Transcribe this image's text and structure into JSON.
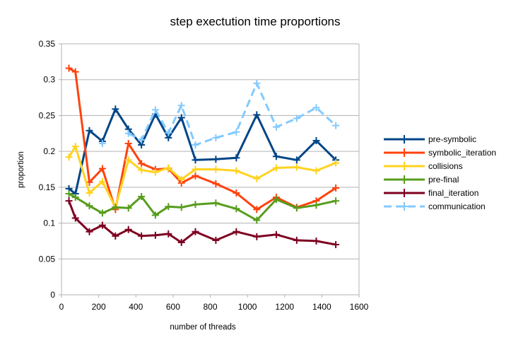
{
  "chart_data": {
    "type": "line",
    "title": "step exectution time proportions",
    "xlabel": "number of threads",
    "ylabel": "proportion",
    "xlim": [
      0,
      1600
    ],
    "ylim": [
      0,
      0.35
    ],
    "x_ticks": [
      "0",
      "200",
      "400",
      "600",
      "800",
      "1000",
      "1200",
      "1400",
      "1600"
    ],
    "y_ticks": [
      "0",
      "0.05",
      "0.1",
      "0.15",
      "0.2",
      "0.25",
      "0.3",
      "0.35"
    ],
    "grid": "horizontal",
    "legend_position": "right",
    "x": [
      40,
      75,
      150,
      220,
      290,
      360,
      430,
      505,
      575,
      645,
      720,
      830,
      940,
      1050,
      1155,
      1265,
      1370,
      1475
    ],
    "series": [
      {
        "name": "pre-symbolic",
        "color": "#004586",
        "dash": "solid",
        "values": [
          0.148,
          0.141,
          0.229,
          0.214,
          0.259,
          0.231,
          0.209,
          0.252,
          0.219,
          0.247,
          0.188,
          0.189,
          0.191,
          0.251,
          0.193,
          0.188,
          0.215,
          0.188
        ]
      },
      {
        "name": "symbolic_iteration",
        "color": "#ff420e",
        "dash": "solid",
        "values": [
          0.316,
          0.311,
          0.157,
          0.176,
          0.119,
          0.211,
          0.183,
          0.175,
          0.176,
          0.156,
          0.166,
          0.155,
          0.142,
          0.119,
          0.136,
          0.122,
          0.131,
          0.149
        ]
      },
      {
        "name": "collisions",
        "color": "#ffd320",
        "dash": "solid",
        "values": [
          0.192,
          0.207,
          0.142,
          0.158,
          0.122,
          0.188,
          0.174,
          0.171,
          0.177,
          0.161,
          0.175,
          0.175,
          0.173,
          0.162,
          0.177,
          0.178,
          0.173,
          0.184
        ]
      },
      {
        "name": "pre-final",
        "color": "#579d1c",
        "dash": "solid",
        "values": [
          0.141,
          0.136,
          0.124,
          0.114,
          0.122,
          0.121,
          0.137,
          0.111,
          0.123,
          0.122,
          0.126,
          0.128,
          0.12,
          0.104,
          0.133,
          0.121,
          0.125,
          0.131
        ]
      },
      {
        "name": "final_iteration",
        "color": "#7e0021",
        "dash": "solid",
        "values": [
          0.131,
          0.107,
          0.088,
          0.097,
          0.082,
          0.091,
          0.082,
          0.083,
          0.085,
          0.073,
          0.088,
          0.076,
          0.088,
          0.081,
          0.084,
          0.076,
          0.075,
          0.07
        ]
      },
      {
        "name": "communication",
        "color": "#83caff",
        "dash": "dashed",
        "values": [
          null,
          null,
          null,
          0.211,
          null,
          0.225,
          0.216,
          0.258,
          0.226,
          0.264,
          0.209,
          0.219,
          0.227,
          0.295,
          0.234,
          0.246,
          0.261,
          0.236
        ]
      }
    ]
  }
}
